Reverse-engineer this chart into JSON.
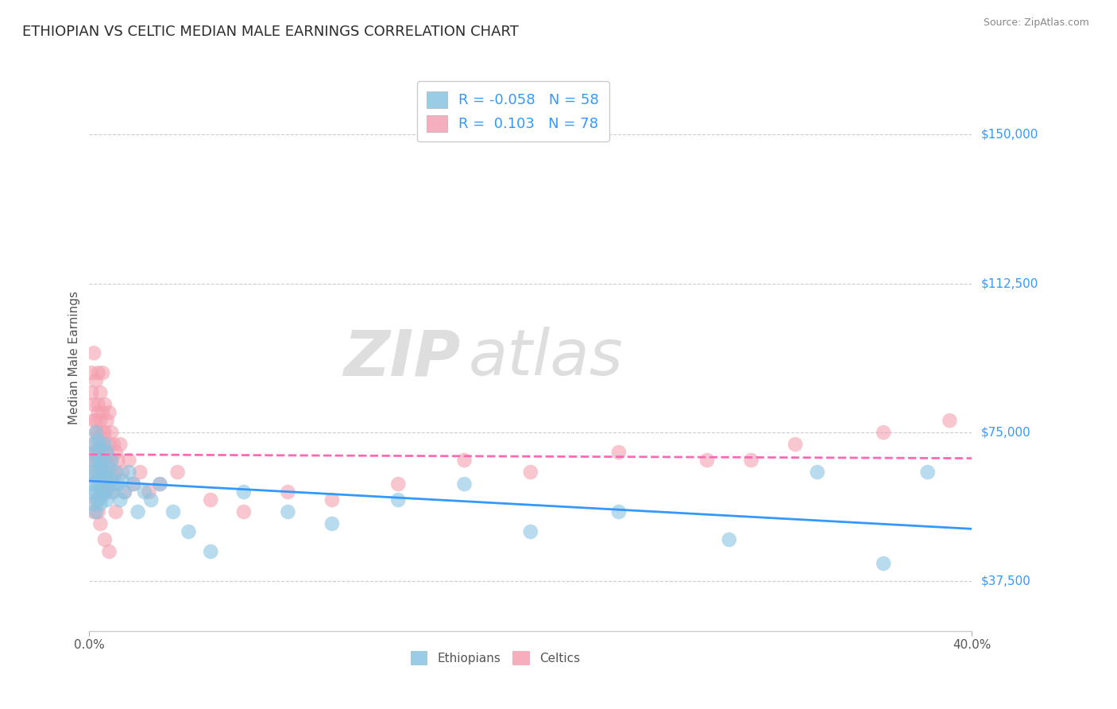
{
  "title": "ETHIOPIAN VS CELTIC MEDIAN MALE EARNINGS CORRELATION CHART",
  "source_text": "Source: ZipAtlas.com",
  "ylabel": "Median Male Earnings",
  "xlim": [
    0.0,
    0.4
  ],
  "ylim": [
    25000,
    162500
  ],
  "yticks": [
    37500,
    75000,
    112500,
    150000
  ],
  "ytick_labels": [
    "$37,500",
    "$75,000",
    "$112,500",
    "$150,000"
  ],
  "xticks": [
    0.0,
    0.4
  ],
  "xtick_labels": [
    "0.0%",
    "40.0%"
  ],
  "title_color": "#2c2c2c",
  "title_fontsize": 13,
  "background_color": "#ffffff",
  "grid_color": "#cccccc",
  "ethiopian_color": "#89c4e1",
  "celtic_color": "#f4a0b0",
  "ethiopian_line_color": "#3399ff",
  "celtic_line_color": "#ff69b4",
  "r_ethiopian": -0.058,
  "n_ethiopian": 58,
  "r_celtic": 0.103,
  "n_celtic": 78,
  "legend_label_ethiopian": "Ethiopians",
  "legend_label_celtic": "Celtics",
  "watermark_zip": "ZIP",
  "watermark_atlas": "atlas",
  "ethiopian_x": [
    0.001,
    0.001,
    0.002,
    0.002,
    0.002,
    0.002,
    0.003,
    0.003,
    0.003,
    0.003,
    0.003,
    0.004,
    0.004,
    0.004,
    0.004,
    0.005,
    0.005,
    0.005,
    0.005,
    0.006,
    0.006,
    0.006,
    0.007,
    0.007,
    0.007,
    0.008,
    0.008,
    0.008,
    0.009,
    0.009,
    0.01,
    0.01,
    0.011,
    0.012,
    0.013,
    0.014,
    0.015,
    0.016,
    0.018,
    0.02,
    0.022,
    0.025,
    0.028,
    0.032,
    0.038,
    0.045,
    0.055,
    0.07,
    0.09,
    0.11,
    0.14,
    0.17,
    0.2,
    0.24,
    0.29,
    0.33,
    0.36,
    0.38
  ],
  "ethiopian_y": [
    65000,
    60000,
    72000,
    68000,
    62000,
    57000,
    70000,
    65000,
    60000,
    55000,
    75000,
    68000,
    63000,
    58000,
    73000,
    66000,
    61000,
    57000,
    71000,
    64000,
    59000,
    68000,
    72000,
    60000,
    65000,
    63000,
    58000,
    70000,
    66000,
    61000,
    68000,
    63000,
    60000,
    65000,
    62000,
    58000,
    63000,
    60000,
    65000,
    62000,
    55000,
    60000,
    58000,
    62000,
    55000,
    50000,
    45000,
    60000,
    55000,
    52000,
    58000,
    62000,
    50000,
    55000,
    48000,
    65000,
    42000,
    65000
  ],
  "celtic_x": [
    0.001,
    0.001,
    0.001,
    0.001,
    0.002,
    0.002,
    0.002,
    0.002,
    0.002,
    0.003,
    0.003,
    0.003,
    0.003,
    0.003,
    0.004,
    0.004,
    0.004,
    0.004,
    0.004,
    0.004,
    0.005,
    0.005,
    0.005,
    0.005,
    0.005,
    0.006,
    0.006,
    0.006,
    0.006,
    0.006,
    0.007,
    0.007,
    0.007,
    0.007,
    0.008,
    0.008,
    0.008,
    0.008,
    0.009,
    0.009,
    0.009,
    0.01,
    0.01,
    0.01,
    0.011,
    0.011,
    0.012,
    0.012,
    0.013,
    0.014,
    0.015,
    0.016,
    0.018,
    0.02,
    0.023,
    0.027,
    0.032,
    0.04,
    0.055,
    0.07,
    0.09,
    0.11,
    0.14,
    0.17,
    0.2,
    0.24,
    0.28,
    0.32,
    0.36,
    0.39,
    0.002,
    0.003,
    0.004,
    0.005,
    0.007,
    0.009,
    0.012,
    0.3
  ],
  "celtic_y": [
    85000,
    72000,
    90000,
    68000,
    78000,
    65000,
    82000,
    70000,
    95000,
    75000,
    88000,
    63000,
    78000,
    68000,
    80000,
    70000,
    90000,
    65000,
    75000,
    82000,
    72000,
    85000,
    60000,
    78000,
    68000,
    80000,
    72000,
    65000,
    90000,
    75000,
    70000,
    82000,
    60000,
    75000,
    68000,
    78000,
    62000,
    70000,
    72000,
    65000,
    80000,
    68000,
    75000,
    60000,
    72000,
    62000,
    70000,
    65000,
    68000,
    72000,
    65000,
    60000,
    68000,
    62000,
    65000,
    60000,
    62000,
    65000,
    58000,
    55000,
    60000,
    58000,
    62000,
    68000,
    65000,
    70000,
    68000,
    72000,
    75000,
    78000,
    55000,
    58000,
    55000,
    52000,
    48000,
    45000,
    55000,
    68000
  ]
}
